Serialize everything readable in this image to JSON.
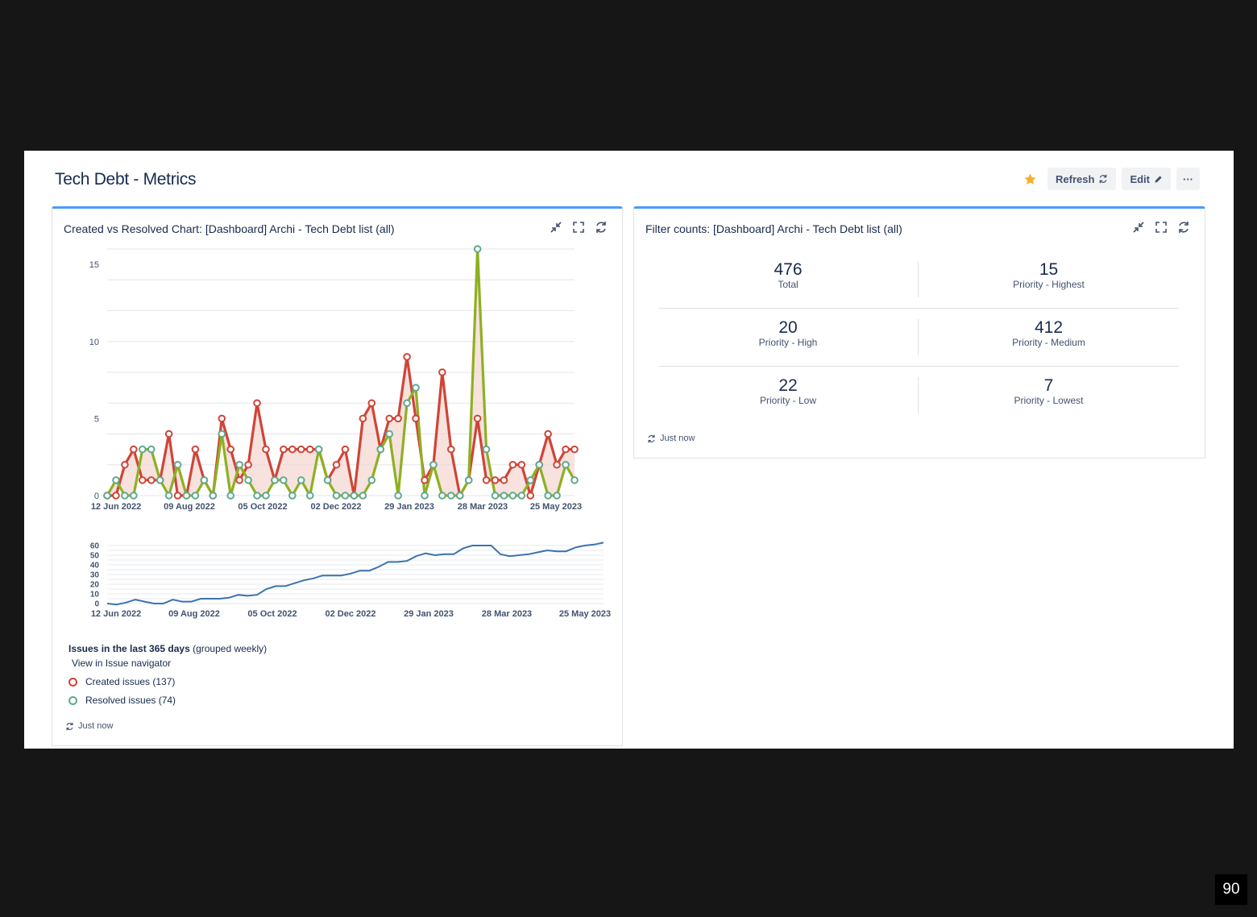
{
  "dashboard": {
    "title": "Tech Debt - Metrics"
  },
  "toolbar": {
    "refresh_label": "Refresh",
    "edit_label": "Edit",
    "more_label": "···"
  },
  "colors": {
    "created": "#d04437",
    "resolved": "#8eb021",
    "resolved_marker": "#5fa98f",
    "trend": "#3b73af",
    "accent": "#4c9aff",
    "star": "#f6b02b"
  },
  "created_chart": {
    "title": "Created vs Resolved Chart: [Dashboard] Archi - Tech Debt list (all)",
    "legend_title": "Issues in the last 365 days",
    "legend_sub": "(grouped weekly)",
    "navigator_link": "View in Issue navigator",
    "footer": "Just now"
  },
  "filter_counts": {
    "title": "Filter counts: [Dashboard] Archi - Tech Debt list (all)",
    "footer": "Just now",
    "rows": [
      [
        {
          "value": "476",
          "label": "Total"
        },
        {
          "value": "15",
          "label": "Priority - Highest"
        }
      ],
      [
        {
          "value": "20",
          "label": "Priority - High"
        },
        {
          "value": "412",
          "label": "Priority - Medium"
        }
      ],
      [
        {
          "value": "22",
          "label": "Priority - Low"
        },
        {
          "value": "7",
          "label": "Priority - Lowest"
        }
      ]
    ]
  },
  "chart_data": [
    {
      "type": "line",
      "x_tick_labels": [
        "12 Jun 2022",
        "09 Aug 2022",
        "05 Oct 2022",
        "02 Dec 2022",
        "29 Jan 2023",
        "28 Mar 2023",
        "25 May 2023"
      ],
      "y_ticks": [
        0,
        5,
        10,
        15
      ],
      "ylim": [
        0,
        16
      ],
      "grid": true,
      "legend_position": "bottom-left",
      "series": [
        {
          "name": "Created issues (137)",
          "values": [
            0,
            0,
            2,
            3,
            1,
            1,
            1,
            4,
            0,
            0,
            3,
            1,
            0,
            5,
            3,
            1,
            2,
            6,
            3,
            1,
            3,
            3,
            3,
            3,
            3,
            1,
            2,
            3,
            0,
            5,
            6,
            3,
            5,
            5,
            9,
            5,
            1,
            2,
            8,
            3,
            0,
            1,
            5,
            1,
            1,
            1,
            2,
            2,
            0,
            2,
            4,
            2,
            3,
            3
          ]
        },
        {
          "name": "Resolved issues (74)",
          "values": [
            0,
            1,
            0,
            0,
            3,
            3,
            1,
            0,
            2,
            0,
            0,
            1,
            0,
            4,
            0,
            2,
            1,
            0,
            0,
            1,
            1,
            0,
            1,
            0,
            3,
            1,
            0,
            0,
            0,
            0,
            1,
            3,
            4,
            0,
            6,
            7,
            0,
            2,
            0,
            0,
            0,
            1,
            16,
            3,
            0,
            0,
            0,
            0,
            1,
            2,
            0,
            0,
            2,
            1
          ]
        }
      ]
    },
    {
      "type": "line",
      "x_tick_labels": [
        "12 Jun 2022",
        "09 Aug 2022",
        "05 Oct 2022",
        "02 Dec 2022",
        "29 Jan 2023",
        "28 Mar 2023",
        "25 May 2023"
      ],
      "y_ticks": [
        0,
        10,
        20,
        30,
        40,
        50,
        60
      ],
      "ylim": [
        0,
        60
      ],
      "grid": true,
      "series": [
        {
          "values": [
            0,
            -1,
            1,
            4,
            2,
            0,
            0,
            4,
            2,
            2,
            5,
            5,
            5,
            6,
            9,
            8,
            9,
            15,
            18,
            18,
            21,
            24,
            26,
            29,
            29,
            29,
            31,
            34,
            34,
            38,
            43,
            43,
            44,
            49,
            52,
            50,
            51,
            51,
            57,
            60,
            60,
            60,
            51,
            49,
            50,
            51,
            53,
            55,
            54,
            54,
            58,
            60,
            61,
            63
          ]
        }
      ]
    }
  ]
}
